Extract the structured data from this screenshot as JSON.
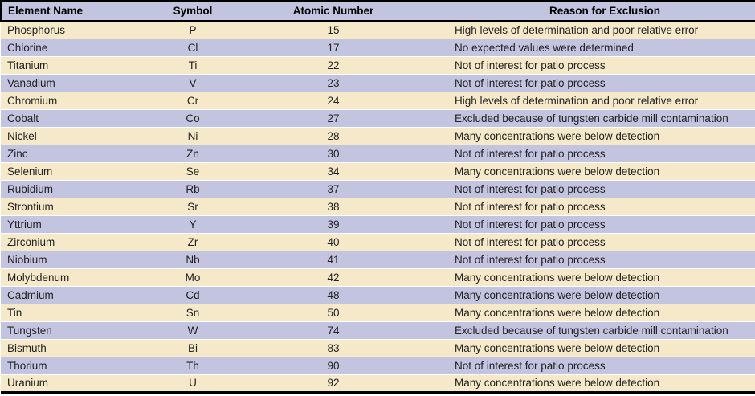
{
  "table": {
    "columns": [
      "Element Name",
      "Symbol",
      "Atomic Number",
      "Reason for Exclusion"
    ],
    "rows": [
      [
        "Phosphorus",
        "P",
        "15",
        "High levels of determination and poor relative error"
      ],
      [
        "Chlorine",
        "Cl",
        "17",
        "No expected values were determined"
      ],
      [
        "Titanium",
        "Ti",
        "22",
        "Not of interest for patio process"
      ],
      [
        "Vanadium",
        "V",
        "23",
        "Not of interest for patio process"
      ],
      [
        "Chromium",
        "Cr",
        "24",
        "High levels of determination and poor relative error"
      ],
      [
        "Cobalt",
        "Co",
        "27",
        "Excluded because of tungsten carbide mill contamination"
      ],
      [
        "Nickel",
        "Ni",
        "28",
        "Many concentrations were below detection"
      ],
      [
        "Zinc",
        "Zn",
        "30",
        "Not of interest for patio process"
      ],
      [
        "Selenium",
        "Se",
        "34",
        "Many concentrations were below detection"
      ],
      [
        "Rubidium",
        "Rb",
        "37",
        "Not of interest for patio process"
      ],
      [
        "Strontium",
        "Sr",
        "38",
        "Not of interest for patio process"
      ],
      [
        "Yttrium",
        "Y",
        "39",
        "Not of interest for patio process"
      ],
      [
        "Zirconium",
        "Zr",
        "40",
        "Not of interest for patio process"
      ],
      [
        "Niobium",
        "Nb",
        "41",
        "Not of interest for patio process"
      ],
      [
        "Molybdenum",
        "Mo",
        "42",
        "Many concentrations were below detection"
      ],
      [
        "Cadmium",
        "Cd",
        "48",
        "Many concentrations were below detection"
      ],
      [
        "Tin",
        "Sn",
        "50",
        "Many concentrations were below detection"
      ],
      [
        "Tungsten",
        "W",
        "74",
        "Excluded because of tungsten carbide mill contamination"
      ],
      [
        "Bismuth",
        "Bi",
        "83",
        "Many concentrations were below detection"
      ],
      [
        "Thorium",
        "Th",
        "90",
        "Not of interest for patio process"
      ],
      [
        "Uranium",
        "U",
        "92",
        "Many concentrations were below detection"
      ]
    ]
  },
  "colors": {
    "header_bg": "#c3c4e0",
    "row_cream": "#f5e9c9",
    "row_lavender": "#c3c4e0",
    "rule": "#000000",
    "text": "#222222"
  }
}
